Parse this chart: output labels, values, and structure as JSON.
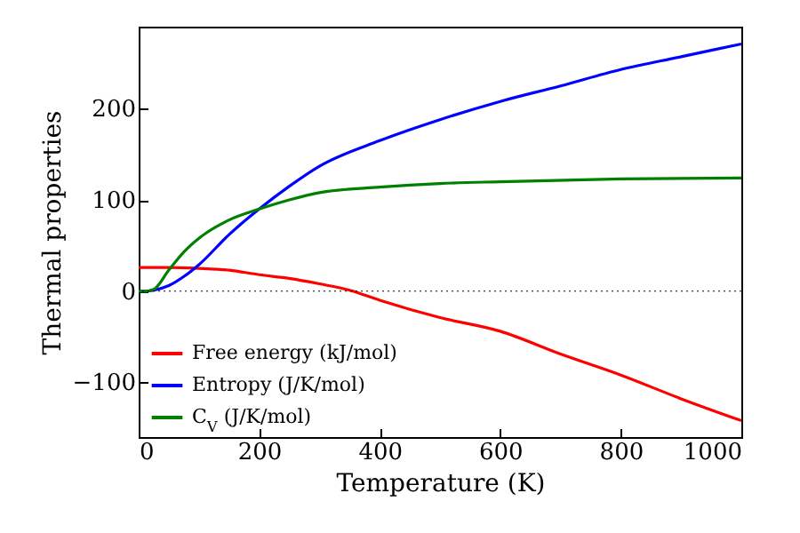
{
  "chart_data": {
    "type": "line",
    "xlabel": "Temperature (K)",
    "ylabel": "Thermal properties",
    "xlim": [
      0,
      1000
    ],
    "xticks": [
      0,
      200,
      400,
      600,
      800,
      {
        "value": 1000,
        "label": "1000"
      }
    ],
    "ylim": [
      -160,
      290
    ],
    "yticks": [
      -100,
      0,
      100,
      200
    ],
    "legend": "bottom left",
    "grid": false,
    "line_style": "solid",
    "marker": "none",
    "ref_lines": [
      {
        "axis": "y",
        "value": 0,
        "label": null,
        "color": "#000000",
        "line_style": "dotted"
      }
    ],
    "series": [
      {
        "name": "Free energy (kJ/mol)",
        "color": "#ff0000",
        "x": [
          0,
          50,
          100,
          150,
          200,
          250,
          300,
          350,
          400,
          500,
          600,
          700,
          800,
          900,
          1000
        ],
        "values": [
          26,
          26,
          25,
          23,
          18,
          14,
          8,
          1,
          -10,
          -29,
          -44,
          -69,
          -92,
          -118,
          -142
        ]
      },
      {
        "name": "Entropy (J/K/mol)",
        "color": "#0000ff",
        "x": [
          0,
          10,
          25,
          50,
          75,
          100,
          150,
          200,
          250,
          300,
          400,
          500,
          600,
          700,
          800,
          900,
          1000
        ],
        "values": [
          0,
          0,
          1,
          6,
          16,
          29,
          62,
          90,
          115,
          137,
          165,
          188,
          208,
          225,
          243,
          257,
          271
        ]
      },
      {
        "name": "C$_{V}$ (J/K/mol)",
        "color": "#008000",
        "x": [
          0,
          10,
          25,
          50,
          75,
          100,
          150,
          200,
          250,
          300,
          400,
          500,
          600,
          800,
          1000
        ],
        "values": [
          0,
          0,
          2,
          23,
          43,
          58,
          78,
          90,
          100,
          108,
          114,
          118,
          120,
          123,
          124
        ]
      }
    ]
  }
}
